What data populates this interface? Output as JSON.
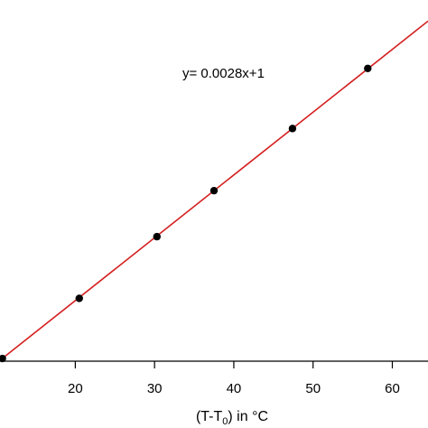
{
  "chart_data": {
    "type": "scatter",
    "title": "",
    "xlabel_main": "(T-T",
    "xlabel_sub": "0",
    "xlabel_tail": ") in °C",
    "ylabel": "",
    "xlim": [
      10.5,
      64.5
    ],
    "ylim": [
      1.029,
      1.19
    ],
    "xticks": [
      20,
      30,
      40,
      50,
      60
    ],
    "xtick_labels": [
      "20",
      "30",
      "40",
      "50",
      "60"
    ],
    "grid": false,
    "annotation": "y= 0.0028x+1",
    "fit": {
      "slope": 0.0028,
      "intercept": 1,
      "color": "#d42020"
    },
    "marker_color": "#000000",
    "points": [
      {
        "x": 10.8,
        "y": 1.0302
      },
      {
        "x": 20.5,
        "y": 1.057
      },
      {
        "x": 30.3,
        "y": 1.0845
      },
      {
        "x": 37.5,
        "y": 1.105
      },
      {
        "x": 47.4,
        "y": 1.1327
      },
      {
        "x": 56.9,
        "y": 1.1595
      }
    ]
  }
}
